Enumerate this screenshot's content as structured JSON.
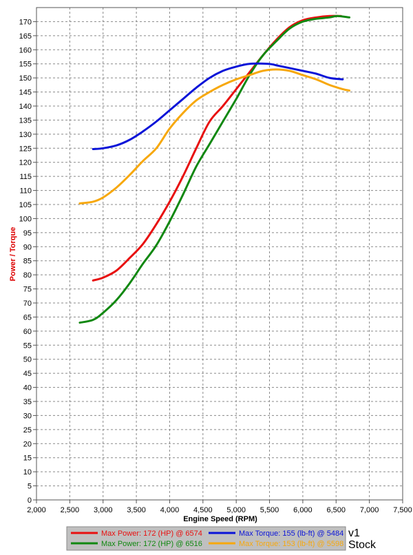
{
  "chart_data": {
    "type": "line",
    "xlabel": "Engine Speed (RPM)",
    "ylabel": "Power / Torque",
    "xlim": [
      2000,
      7500
    ],
    "ylim": [
      0,
      175
    ],
    "x_ticks": [
      2000,
      2500,
      3000,
      3500,
      4000,
      4500,
      5000,
      5500,
      6000,
      6500,
      7000,
      7500
    ],
    "x_tick_labels": [
      "2,000",
      "2,500",
      "3,000",
      "3,500",
      "4,000",
      "4,500",
      "5,000",
      "5,500",
      "6,000",
      "6,500",
      "7,000",
      "7,500"
    ],
    "y_ticks": [
      0,
      5,
      10,
      15,
      20,
      25,
      30,
      35,
      40,
      45,
      50,
      55,
      60,
      65,
      70,
      75,
      80,
      85,
      90,
      95,
      100,
      105,
      110,
      115,
      120,
      125,
      130,
      135,
      140,
      145,
      150,
      155,
      160,
      165,
      170
    ],
    "grid": true,
    "legend_position": "bottom",
    "colors": {
      "red": "#e81010",
      "green": "#118811",
      "blue": "#0a14d8",
      "orange": "#f7a80c",
      "ylabel": "#dd0000",
      "legend_bg": "#c0c0c0"
    },
    "series": [
      {
        "name": "Max Power: 172 (HP) @ 6574",
        "color": "#e81010",
        "x": [
          2850,
          3000,
          3200,
          3400,
          3600,
          3800,
          4000,
          4200,
          4400,
          4600,
          4800,
          5000,
          5200,
          5400,
          5600,
          5800,
          6000,
          6200,
          6400,
          6574
        ],
        "y": [
          78,
          79,
          81.5,
          86,
          91,
          98,
          106,
          115,
          125,
          134.5,
          140,
          146,
          152,
          158,
          163.5,
          168,
          170.5,
          171.5,
          172,
          172
        ]
      },
      {
        "name": "Max Power: 172 (HP) @ 6516",
        "color": "#118811",
        "x": [
          2650,
          2850,
          3000,
          3200,
          3400,
          3600,
          3800,
          4000,
          4200,
          4400,
          4600,
          4800,
          5000,
          5200,
          5400,
          5600,
          5800,
          6000,
          6200,
          6400,
          6516,
          6700
        ],
        "y": [
          63,
          64,
          66.5,
          71,
          77,
          84,
          90.5,
          99,
          108.5,
          118.5,
          126.5,
          134.5,
          142.5,
          151,
          158,
          163,
          167.5,
          170,
          171,
          171.5,
          172,
          171.5
        ]
      },
      {
        "name": "Max Torque: 155 (lb-ft) @ 5484",
        "color": "#0a14d8",
        "x": [
          2850,
          3000,
          3200,
          3400,
          3600,
          3800,
          4000,
          4200,
          4400,
          4600,
          4800,
          5000,
          5200,
          5484,
          5600,
          5800,
          6000,
          6200,
          6400,
          6600
        ],
        "y": [
          124.7,
          125,
          126,
          128,
          131,
          134.5,
          138.5,
          142.5,
          146.5,
          150,
          152.5,
          154,
          155,
          155,
          154.5,
          153.5,
          152.5,
          151.5,
          150,
          149.5
        ]
      },
      {
        "name": "Max Torque: 153 (lb-ft) @ 5598",
        "color": "#f7a80c",
        "x": [
          2650,
          2850,
          3000,
          3200,
          3400,
          3600,
          3800,
          4000,
          4200,
          4400,
          4600,
          4800,
          5000,
          5200,
          5400,
          5598,
          5800,
          6000,
          6200,
          6400,
          6600,
          6700
        ],
        "y": [
          105.4,
          106,
          107.5,
          111,
          115.5,
          120.5,
          125,
          132,
          137.5,
          142,
          145,
          147.5,
          149.5,
          151,
          152.5,
          153,
          152.5,
          151,
          149.5,
          147.5,
          146,
          145.5
        ]
      }
    ],
    "legend_groups": [
      "v1",
      "Stock"
    ]
  }
}
